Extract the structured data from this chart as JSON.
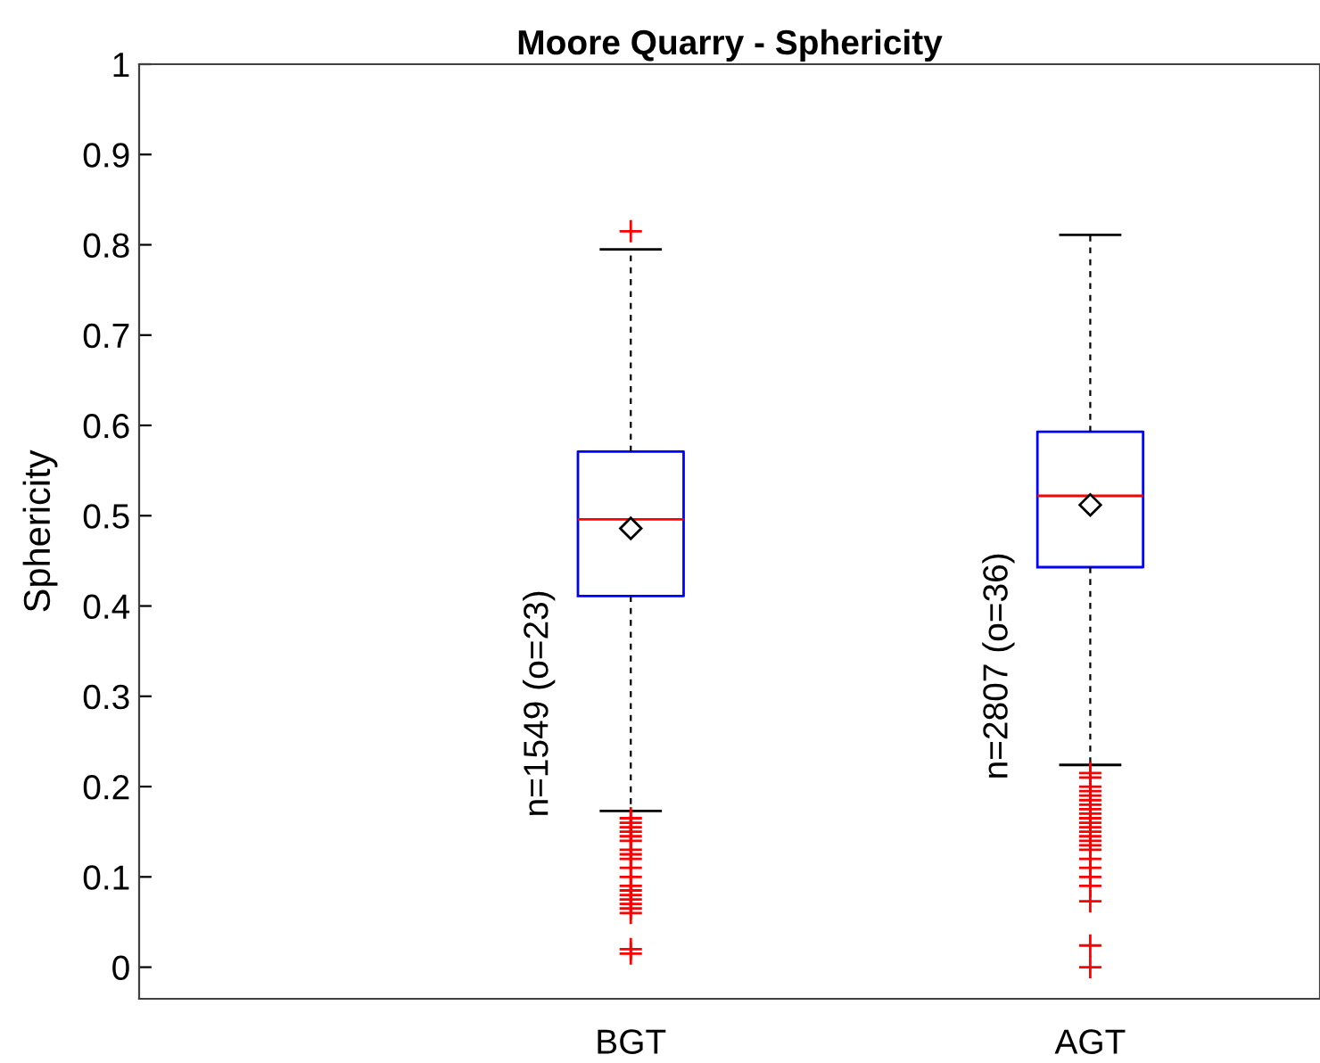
{
  "chart_data": {
    "type": "box",
    "title": "Moore Quarry - Sphericity",
    "ylabel": "Sphericity",
    "categories": [
      "BGT",
      "AGT"
    ],
    "boxes": [
      {
        "low": 0.173,
        "q1": 0.411,
        "median": 0.496,
        "q3": 0.571,
        "high": 0.795,
        "mean": 0.486,
        "outliers": [
          0.815,
          0.165,
          0.16,
          0.155,
          0.15,
          0.145,
          0.14,
          0.13,
          0.125,
          0.12,
          0.11,
          0.1,
          0.09,
          0.085,
          0.08,
          0.075,
          0.07,
          0.065,
          0.06,
          0.02,
          0.015
        ]
      },
      {
        "low": 0.224,
        "q1": 0.443,
        "median": 0.522,
        "q3": 0.593,
        "high": 0.811,
        "mean": 0.512,
        "outliers": [
          0.215,
          0.21,
          0.2,
          0.195,
          0.19,
          0.185,
          0.18,
          0.175,
          0.17,
          0.165,
          0.16,
          0.155,
          0.15,
          0.145,
          0.14,
          0.135,
          0.13,
          0.12,
          0.11,
          0.1,
          0.09,
          0.073,
          0.024,
          0.0
        ]
      }
    ],
    "annotations": [
      "n=1549 (o=23)",
      "n=2807 (o=36)"
    ],
    "ylim": [
      -0.035,
      1
    ],
    "yticks": [
      0,
      0.1,
      0.2,
      0.3,
      0.4,
      0.5,
      0.6,
      0.7,
      0.8,
      0.9,
      1
    ],
    "grid": false,
    "legend": false
  }
}
